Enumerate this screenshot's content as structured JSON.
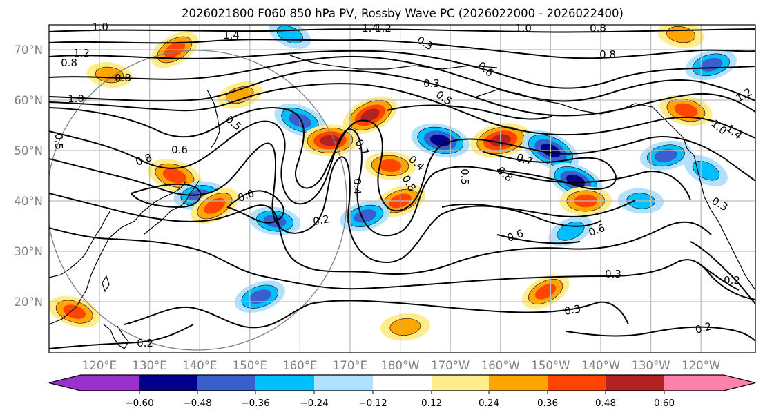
{
  "chart_data": {
    "type": "heatmap",
    "title": "2026021800 F060 850 hPa PV, Rossby Wave PC (2026022000 - 2026022400)",
    "map_extent": {
      "lon_min": 110,
      "lon_max": 250,
      "lat_min": 10,
      "lat_max": 75
    },
    "x_ticks": [
      "120°E",
      "130°E",
      "140°E",
      "150°E",
      "160°E",
      "170°E",
      "180°W",
      "170°W",
      "160°W",
      "150°W",
      "140°W",
      "130°W",
      "120°W"
    ],
    "x_tick_lons": [
      120,
      130,
      140,
      150,
      160,
      170,
      180,
      190,
      200,
      210,
      220,
      230,
      240
    ],
    "y_ticks": [
      "70°N",
      "60°N",
      "50°N",
      "40°N",
      "30°N",
      "20°N"
    ],
    "y_tick_lats": [
      70,
      60,
      50,
      40,
      30,
      20
    ],
    "grid": true,
    "colorbar": {
      "orientation": "horizontal",
      "placement": "bottom",
      "extend": "both",
      "levels": [
        -0.6,
        -0.48,
        -0.36,
        -0.24,
        -0.12,
        0.12,
        0.24,
        0.36,
        0.48,
        0.6
      ],
      "tick_labels": [
        "−0.60",
        "−0.48",
        "−0.36",
        "−0.24",
        "−0.12",
        "0.12",
        "0.24",
        "0.36",
        "0.48",
        "0.60"
      ],
      "colors": [
        "#9932cc",
        "#00008b",
        "#3a5fcd",
        "#00bfff",
        "#b0e2ff",
        "#ffffff",
        "#ffec8b",
        "#ffa500",
        "#ff4500",
        "#b22222",
        "#ff82ab"
      ]
    },
    "contour_labels": [
      "1.0",
      "1.4",
      "1.2",
      "1.0",
      "0.8",
      "1.4",
      "1.2",
      "0.8",
      "1.0",
      "0.5",
      "0.6",
      "0.8",
      "0.6",
      "0.3",
      "0.5",
      "0.7",
      "0.4",
      "0.4",
      "0.8",
      "0.5",
      "0.7",
      "0.8",
      "0.6",
      "0.6",
      "0.2",
      "0.3",
      "0.3",
      "0.2",
      "0.2",
      "0.3",
      "0.6",
      "0.8",
      "0.5",
      "1.2",
      "1.4",
      "1.0",
      "0.3",
      "0.2",
      "0.8"
    ],
    "anomalies": [
      {
        "lon": 135,
        "lat": 70,
        "value": 0.4
      },
      {
        "lon": 122,
        "lat": 65,
        "value": 0.28
      },
      {
        "lon": 148,
        "lat": 61,
        "value": 0.28
      },
      {
        "lon": 160,
        "lat": 56,
        "value": -0.42
      },
      {
        "lon": 166,
        "lat": 52,
        "value": 0.5
      },
      {
        "lon": 174,
        "lat": 57,
        "value": 0.5
      },
      {
        "lon": 188,
        "lat": 52,
        "value": -0.52
      },
      {
        "lon": 200,
        "lat": 52,
        "value": 0.55
      },
      {
        "lon": 210,
        "lat": 50,
        "value": -0.55
      },
      {
        "lon": 178,
        "lat": 47,
        "value": 0.38
      },
      {
        "lon": 180,
        "lat": 40,
        "value": 0.4
      },
      {
        "lon": 135,
        "lat": 45,
        "value": 0.45
      },
      {
        "lon": 140,
        "lat": 41,
        "value": -0.4
      },
      {
        "lon": 143,
        "lat": 39,
        "value": 0.4
      },
      {
        "lon": 155,
        "lat": 36,
        "value": -0.38
      },
      {
        "lon": 173,
        "lat": 37,
        "value": -0.38
      },
      {
        "lon": 215,
        "lat": 44,
        "value": -0.48
      },
      {
        "lon": 217,
        "lat": 40,
        "value": 0.4
      },
      {
        "lon": 214,
        "lat": 34,
        "value": -0.3
      },
      {
        "lon": 237,
        "lat": 58,
        "value": 0.42
      },
      {
        "lon": 233,
        "lat": 49,
        "value": -0.4
      },
      {
        "lon": 241,
        "lat": 46,
        "value": -0.3
      },
      {
        "lon": 228,
        "lat": 40,
        "value": -0.28
      },
      {
        "lon": 152,
        "lat": 21,
        "value": -0.4
      },
      {
        "lon": 115,
        "lat": 18,
        "value": 0.4
      },
      {
        "lon": 181,
        "lat": 15,
        "value": 0.35
      },
      {
        "lon": 209,
        "lat": 22,
        "value": 0.38
      },
      {
        "lon": 236,
        "lat": 73,
        "value": 0.3
      },
      {
        "lon": 242,
        "lat": 67,
        "value": -0.4
      },
      {
        "lon": 158,
        "lat": 73,
        "value": -0.26
      }
    ]
  }
}
